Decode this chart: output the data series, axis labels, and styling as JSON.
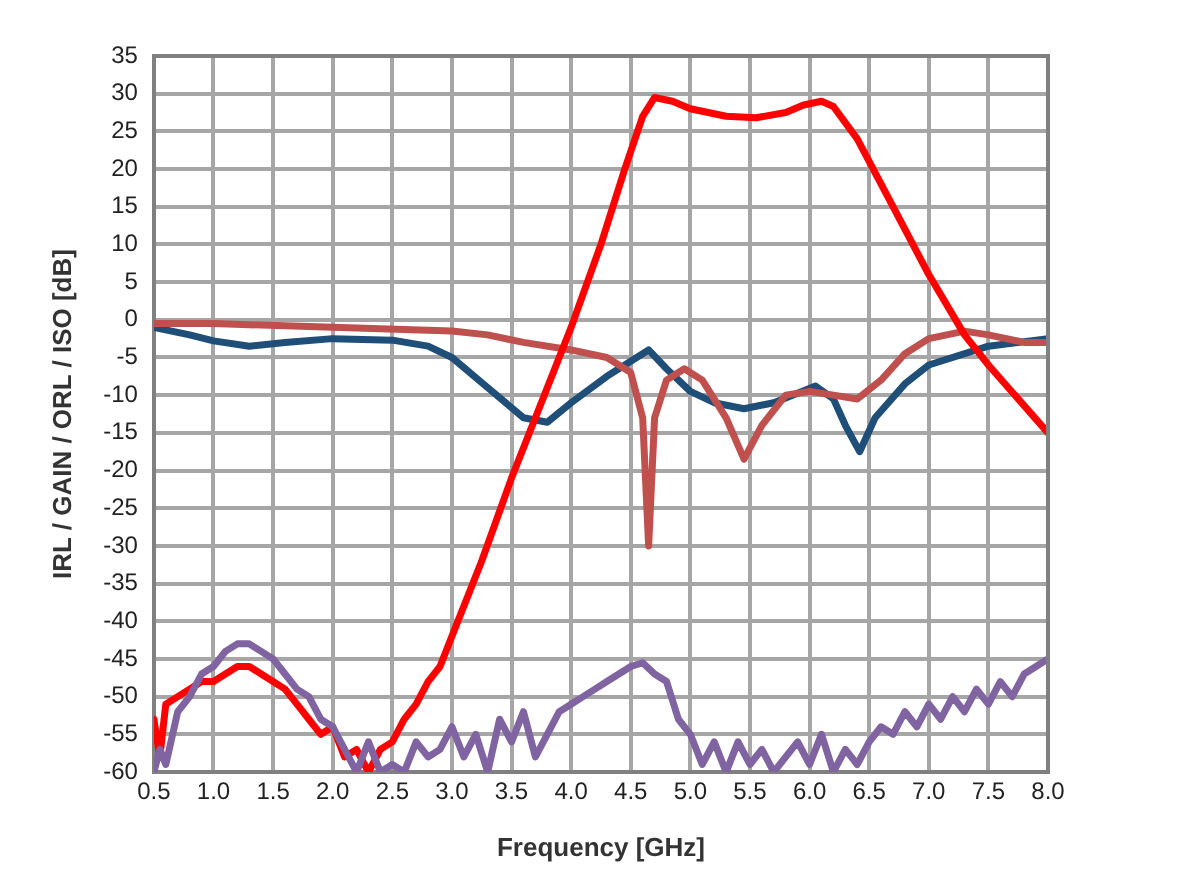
{
  "chart_data": {
    "type": "line",
    "xlabel": "Frequency [GHz]",
    "ylabel": "IRL / GAIN / ORL / ISO [dB]",
    "xlim": [
      0.5,
      8.0
    ],
    "ylim": [
      -60,
      35
    ],
    "xticks": [
      0.5,
      {
        "value": 1,
        "label": "1.0"
      },
      1.5,
      {
        "value": 2,
        "label": "2.0"
      },
      2.5,
      {
        "value": 3,
        "label": "3.0"
      },
      3.5,
      {
        "value": 4,
        "label": "4.0"
      },
      4.5,
      {
        "value": 5,
        "label": "5.0"
      },
      5.5,
      {
        "value": 6,
        "label": "6.0"
      },
      6.5,
      {
        "value": 7,
        "label": "7.0"
      },
      7.5,
      {
        "value": 8,
        "label": "8.0"
      }
    ],
    "yticks": [
      -60,
      -55,
      -50,
      -45,
      -40,
      -35,
      -30,
      -25,
      -20,
      -15,
      -10,
      -5,
      0,
      5,
      10,
      15,
      20,
      25,
      30,
      35
    ],
    "grid": true,
    "legend": false,
    "marker": "none",
    "line_style": "solid",
    "series": [
      {
        "color": "#8064a2",
        "x": [
          0.5,
          0.55,
          0.6,
          0.7,
          0.8,
          0.9,
          1.0,
          1.1,
          1.2,
          1.3,
          1.4,
          1.5,
          1.6,
          1.7,
          1.8,
          1.9,
          2.0,
          2.1,
          2.2,
          2.3,
          2.4,
          2.5,
          2.6,
          2.7,
          2.8,
          2.9,
          3.0,
          3.1,
          3.2,
          3.3,
          3.4,
          3.5,
          3.6,
          3.7,
          3.8,
          3.9,
          4.0,
          4.1,
          4.2,
          4.3,
          4.4,
          4.5,
          4.6,
          4.7,
          4.8,
          4.9,
          5.0,
          5.1,
          5.2,
          5.3,
          5.4,
          5.5,
          5.6,
          5.7,
          5.8,
          5.9,
          6.0,
          6.1,
          6.2,
          6.3,
          6.4,
          6.5,
          6.6,
          6.7,
          6.8,
          6.9,
          7.0,
          7.1,
          7.2,
          7.3,
          7.4,
          7.5,
          7.6,
          7.7,
          7.8,
          7.9,
          8.0
        ],
        "values": [
          -60,
          -57,
          -59,
          -52,
          -50,
          -47,
          -46,
          -44,
          -43,
          -43,
          -44,
          -45,
          -47,
          -49,
          -50,
          -53,
          -54,
          -57,
          -60,
          -56,
          -60,
          -59,
          -60,
          -56,
          -58,
          -57,
          -54,
          -58,
          -55,
          -60,
          -53,
          -56,
          -52,
          -58,
          -55,
          -52,
          -51,
          -50,
          -49,
          -48,
          -47,
          -46,
          -45.5,
          -47,
          -48,
          -53,
          -55,
          -59,
          -56,
          -60,
          -56,
          -59,
          -57,
          -60,
          -58,
          -56,
          -59,
          -55,
          -60,
          -57,
          -59,
          -56,
          -54,
          -55,
          -52,
          -54,
          -51,
          -53,
          -50,
          -52,
          -49,
          -51,
          -48,
          -50,
          -47,
          -46,
          -45
        ]
      },
      {
        "color": "#ff0000",
        "x": [
          0.5,
          0.55,
          0.6,
          0.7,
          0.8,
          0.9,
          1.0,
          1.1,
          1.2,
          1.3,
          1.4,
          1.5,
          1.6,
          1.7,
          1.8,
          1.9,
          2.0,
          2.1,
          2.2,
          2.3,
          2.4,
          2.5,
          2.6,
          2.7,
          2.8,
          2.9,
          3.0,
          3.25,
          3.5,
          3.75,
          4.0,
          4.25,
          4.45,
          4.6,
          4.7,
          4.85,
          5.0,
          5.3,
          5.55,
          5.8,
          5.95,
          6.1,
          6.2,
          6.4,
          6.7,
          7.0,
          7.3,
          7.5,
          7.75,
          8.0
        ],
        "values": [
          -53,
          -58,
          -51,
          -50,
          -49,
          -48,
          -48,
          -47,
          -46,
          -46,
          -47,
          -48,
          -49,
          -51,
          -53,
          -55,
          -54,
          -58,
          -57,
          -60,
          -57,
          -56,
          -53,
          -51,
          -48,
          -46,
          -42,
          -32,
          -21,
          -11,
          -1,
          10,
          20,
          27,
          29.5,
          29,
          28,
          27,
          26.8,
          27.5,
          28.5,
          29,
          28.3,
          24,
          15,
          6,
          -2,
          -6,
          -10.5,
          -15
        ]
      },
      {
        "color": "#c0504d",
        "x": [
          0.5,
          1.0,
          2.0,
          3.0,
          3.3,
          3.6,
          4.0,
          4.3,
          4.5,
          4.6,
          4.65,
          4.7,
          4.8,
          4.95,
          5.1,
          5.3,
          5.45,
          5.6,
          5.8,
          6.0,
          6.2,
          6.4,
          6.6,
          6.8,
          7.0,
          7.3,
          7.5,
          7.8,
          8.0
        ],
        "values": [
          -0.5,
          -0.5,
          -1,
          -1.5,
          -2,
          -3,
          -4,
          -5,
          -7,
          -13,
          -30,
          -13,
          -8,
          -6.5,
          -8,
          -13,
          -18.5,
          -14,
          -10,
          -9.5,
          -10,
          -10.5,
          -8,
          -4.5,
          -2.5,
          -1.5,
          -2,
          -3,
          -3
        ]
      },
      {
        "color": "#1f4e79",
        "x": [
          0.5,
          0.8,
          1.0,
          1.3,
          1.6,
          2.0,
          2.5,
          2.8,
          3.0,
          3.3,
          3.6,
          3.8,
          4.0,
          4.3,
          4.65,
          4.8,
          5.0,
          5.2,
          5.45,
          5.7,
          6.05,
          6.2,
          6.3,
          6.42,
          6.55,
          6.8,
          7.0,
          7.5,
          8.0
        ],
        "values": [
          -1,
          -2,
          -2.8,
          -3.5,
          -3,
          -2.5,
          -2.7,
          -3.5,
          -5,
          -9,
          -13,
          -13.6,
          -11,
          -7.5,
          -4,
          -6.5,
          -9.5,
          -11,
          -11.8,
          -11,
          -8.8,
          -10.5,
          -14,
          -17.5,
          -13,
          -8.5,
          -6,
          -3.5,
          -2.5
        ]
      }
    ]
  }
}
